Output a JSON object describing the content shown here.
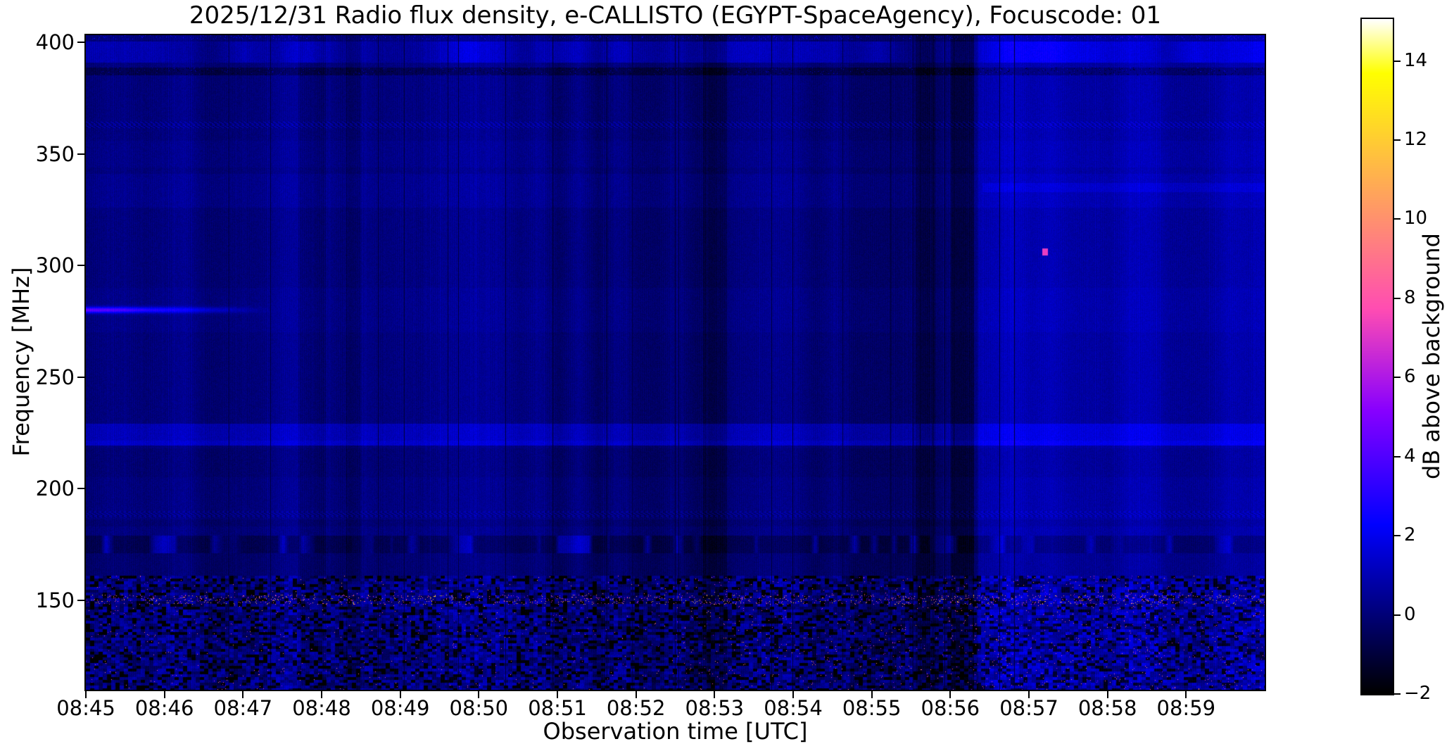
{
  "figure": {
    "title": "2025/12/31  Radio flux density, e-CALLISTO (EGYPT-SpaceAgency), Focuscode: 01",
    "background_color": "#ffffff",
    "text_color": "#000000"
  },
  "axes": {
    "xlabel": "Observation time [UTC]",
    "ylabel": "Frequency [MHz]",
    "x_ticks": [
      {
        "label": "08:45",
        "minute": 0
      },
      {
        "label": "08:46",
        "minute": 1
      },
      {
        "label": "08:47",
        "minute": 2
      },
      {
        "label": "08:48",
        "minute": 3
      },
      {
        "label": "08:49",
        "minute": 4
      },
      {
        "label": "08:50",
        "minute": 5
      },
      {
        "label": "08:51",
        "minute": 6
      },
      {
        "label": "08:52",
        "minute": 7
      },
      {
        "label": "08:53",
        "minute": 8
      },
      {
        "label": "08:54",
        "minute": 9
      },
      {
        "label": "08:55",
        "minute": 10
      },
      {
        "label": "08:56",
        "minute": 11
      },
      {
        "label": "08:57",
        "minute": 12
      },
      {
        "label": "08:58",
        "minute": 13
      },
      {
        "label": "08:59",
        "minute": 14
      }
    ],
    "y_ticks": [
      {
        "label": "400",
        "mhz": 400
      },
      {
        "label": "350",
        "mhz": 350
      },
      {
        "label": "300",
        "mhz": 300
      },
      {
        "label": "250",
        "mhz": 250
      },
      {
        "label": "200",
        "mhz": 200
      },
      {
        "label": "150",
        "mhz": 150
      }
    ]
  },
  "colorbar": {
    "label": "dB above background",
    "vmin": -2,
    "vmax": 15.06,
    "colormap": "gnuplot2",
    "ticks": [
      {
        "label": "14",
        "value": 14
      },
      {
        "label": "12",
        "value": 12
      },
      {
        "label": "10",
        "value": 10
      },
      {
        "label": "8",
        "value": 8
      },
      {
        "label": "6",
        "value": 6
      },
      {
        "label": "4",
        "value": 4
      },
      {
        "label": "2",
        "value": 2
      },
      {
        "label": "0",
        "value": 0
      },
      {
        "label": "−2",
        "value": -2
      }
    ]
  },
  "chart_data": {
    "type": "heatmap",
    "title": "2025/12/31  Radio flux density, e-CALLISTO (EGYPT-SpaceAgency), Focuscode: 01",
    "date": "2025/12/31",
    "instrument": "e-CALLISTO (EGYPT-SpaceAgency)",
    "focuscode": "01",
    "xlabel": "Observation time [UTC]",
    "ylabel": "Frequency [MHz]",
    "value_label": "dB above background",
    "x_range_utc": [
      "08:45",
      "09:00"
    ],
    "x_range_minutes": [
      0,
      15
    ],
    "y_range_mhz": [
      109.8,
      403.2
    ],
    "value_range_db": [
      -2,
      15.06
    ],
    "background_level_db": 0.4,
    "colormap": "gnuplot2",
    "features": [
      {
        "kind": "horizontal_streak",
        "freq_mhz": 280,
        "t_minutes": [
          0,
          2.4
        ],
        "peak_db": 4.5,
        "note": "bright blue streak at left edge fading by 08:47"
      },
      {
        "kind": "band",
        "freq_mhz": [
          391,
          400
        ],
        "db": 0.9,
        "note": "patchy blue band near top edge"
      },
      {
        "kind": "dark_line",
        "freq_mhz": [
          385.3,
          388.8
        ],
        "db": -0.75,
        "note": "dark line with black/bright dots"
      },
      {
        "kind": "dotted_line",
        "freq_mhz": [
          361.5,
          364.5
        ],
        "db": 1.3
      },
      {
        "kind": "band",
        "freq_mhz": [
          221.5,
          229
        ],
        "db": 0.95,
        "note": "light blue haze band"
      },
      {
        "kind": "line",
        "freq_mhz": [
          219.3,
          221.5
        ],
        "db": 1.25,
        "note": "sharper bright blue line"
      },
      {
        "kind": "dotted_line",
        "freq_mhz": [
          187,
          190
        ],
        "db": 1.0
      },
      {
        "kind": "dark_band_with_dashes",
        "freq_mhz": [
          171,
          179
        ],
        "db": -0.55,
        "dash_db": 1.8
      },
      {
        "kind": "rfi_speckle_line",
        "freq_mhz": [
          148,
          152.5
        ],
        "peak_db": 13,
        "note": "pink/orange/white RFI bursts near 150 MHz"
      },
      {
        "kind": "rfi_chaos_band",
        "freq_mhz": [
          110,
          161
        ],
        "peak_db": 10.5,
        "note": "black/blue chaotic band with colored speckles, denser after 08:52"
      },
      {
        "kind": "bright_region",
        "t_minutes": [
          11.35,
          15
        ],
        "db": 0.7,
        "note": "overall brighter blue after 08:56"
      },
      {
        "kind": "point",
        "t_minutes": 12.2,
        "freq_mhz": 306,
        "db": 7.2,
        "note": "isolated pink dot near 08:57"
      },
      {
        "kind": "streak_right",
        "freq_mhz": [
          333,
          337
        ],
        "t_minutes": [
          11.4,
          15
        ],
        "db": 0.45
      },
      {
        "kind": "dark_columns",
        "t_minutes": [
          [
            2.7,
            3.05,
            0.55
          ],
          [
            3.3,
            3.5,
            0.45
          ],
          [
            7.85,
            8.15,
            0.5
          ],
          [
            10.55,
            10.8,
            0.5
          ],
          [
            11.0,
            11.3,
            0.95
          ]
        ],
        "note": "darker vertical column groups plus thin black dropout lines"
      }
    ],
    "render": {
      "seed": 20251231,
      "fine_stripe_db": [
        0.05,
        -0.33,
        -0.12
      ],
      "black_column_density_mid": 0.02,
      "black_column_density_edge": 0.006
    }
  }
}
